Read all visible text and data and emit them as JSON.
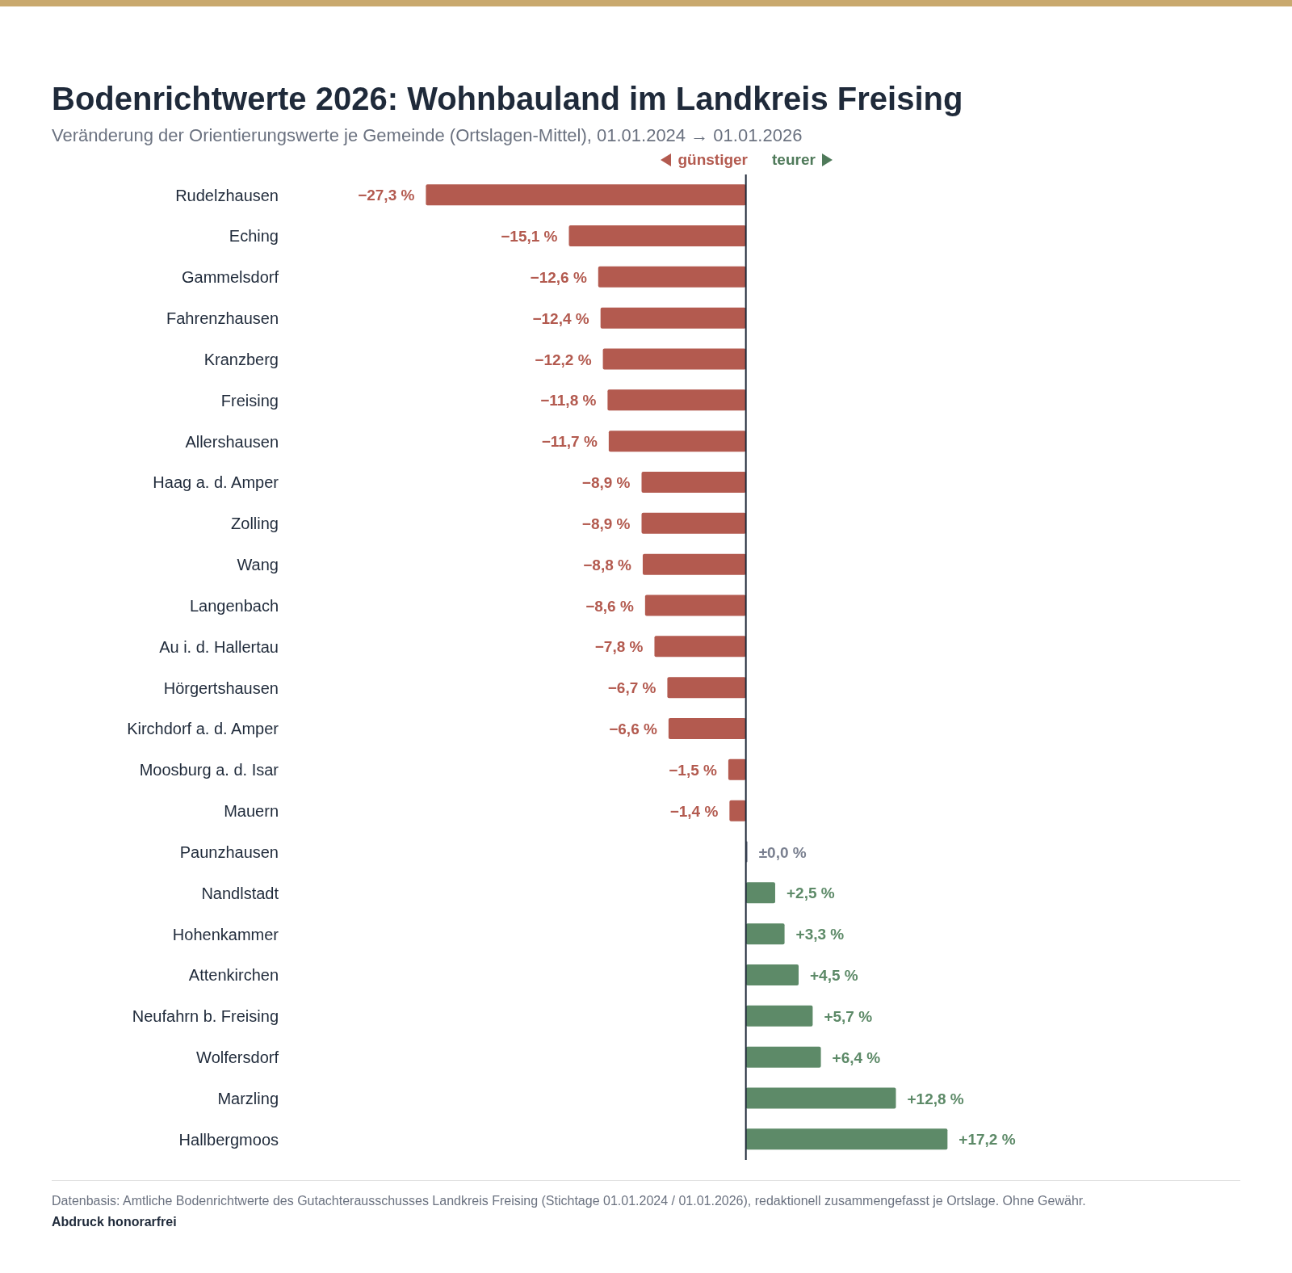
{
  "chart_data": {
    "type": "bar",
    "orientation": "horizontal",
    "title": "Bodenrichtwerte 2026: Wohnbauland im Landkreis Freising",
    "subtitle": "Veränderung der Orientierungswerte je Gemeinde (Ortslagen-Mittel), 01.01.2024 → 01.01.2026",
    "categories": [
      "Rudelzhausen",
      "Eching",
      "Gammelsdorf",
      "Fahrenzhausen",
      "Kranzberg",
      "Freising",
      "Allershausen",
      "Haag a. d. Amper",
      "Zolling",
      "Wang",
      "Langenbach",
      "Au i. d. Hallertau",
      "Hörgertshausen",
      "Kirchdorf a. d. Amper",
      "Moosburg a. d. Isar",
      "Mauern",
      "Paunzhausen",
      "Nandlstadt",
      "Hohenkammer",
      "Attenkirchen",
      "Neufahrn b. Freising",
      "Wolfersdorf",
      "Marzling",
      "Hallbergmoos"
    ],
    "values": [
      -27.3,
      -15.1,
      -12.6,
      -12.4,
      -12.2,
      -11.8,
      -11.7,
      -8.9,
      -8.9,
      -8.8,
      -8.6,
      -7.8,
      -6.7,
      -6.6,
      -1.5,
      -1.4,
      0,
      2.5,
      3.3,
      4.5,
      5.7,
      6.4,
      12.8,
      17.2
    ],
    "value_labels": [
      "−27,3 %",
      "−15,1 %",
      "−12,6 %",
      "−12,4 %",
      "−12,2 %",
      "−11,8 %",
      "−11,7 %",
      "−8,9 %",
      "−8,9 %",
      "−8,8 %",
      "−8,6 %",
      "−7,8 %",
      "−6,7 %",
      "−6,6 %",
      "−1,5 %",
      "−1,4 %",
      "±0,0 %",
      "+2,5 %",
      "+3,3 %",
      "+4,5 %",
      "+5,7 %",
      "+6,4 %",
      "+12,8 %",
      "+17,2 %"
    ],
    "colors": [
      "#b35a4f",
      "#b35a4f",
      "#b35a4f",
      "#b35a4f",
      "#b35a4f",
      "#b35a4f",
      "#b35a4f",
      "#b35a4f",
      "#b35a4f",
      "#b35a4f",
      "#b35a4f",
      "#b35a4f",
      "#b35a4f",
      "#b35a4f",
      "#b35a4f",
      "#b35a4f",
      "#7a8090",
      "#5d8a68",
      "#5d8a68",
      "#5d8a68",
      "#5d8a68",
      "#5d8a68",
      "#5d8a68",
      "#5d8a68"
    ],
    "ref_lines": [
      {
        "axis": "x",
        "value": 0,
        "color": "#1f2a3a"
      }
    ],
    "annotations": [
      "günstiger",
      "teurer",
      "Datenbasis: Amtliche Bodenrichtwerte des Gutachterausschusses Landkreis Freising (Stichtage 01.01.2024 / 01.01.2026), redaktionell zusammengefasst je Ortslage. Ohne Gewähr.",
      "Abdruck honorarfrei"
    ]
  }
}
